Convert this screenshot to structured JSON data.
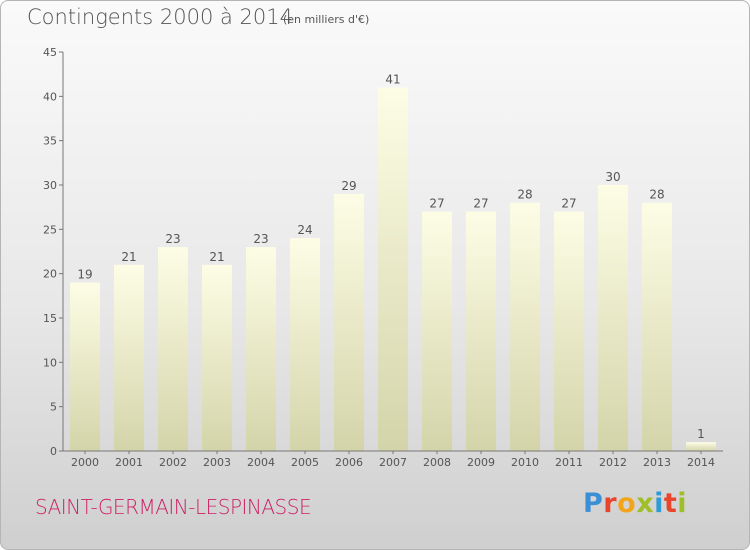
{
  "header": {
    "title": "Contingents 2000 à 2014",
    "subtitle": "(en milliers d'€)"
  },
  "footer": {
    "commune": "SAINT-GERMAIN-LESPINASSE",
    "logo": {
      "text": "Proxiti",
      "colors": [
        "#3a8fd6",
        "#e8452c",
        "#f2a51b",
        "#9fbf26",
        "#2e9bd6",
        "#e8452c",
        "#9fbf26"
      ]
    }
  },
  "chart_data": {
    "type": "bar",
    "title": "Contingents 2000 à 2014",
    "subtitle": "(en milliers d'€)",
    "categories": [
      "2000",
      "2001",
      "2002",
      "2003",
      "2004",
      "2005",
      "2006",
      "2007",
      "2008",
      "2009",
      "2010",
      "2011",
      "2012",
      "2013",
      "2014"
    ],
    "values": [
      19,
      21,
      23,
      21,
      23,
      24,
      29,
      41,
      27,
      27,
      28,
      27,
      30,
      28,
      1
    ],
    "ylim": [
      0,
      45
    ],
    "yticks": [
      0,
      5,
      10,
      15,
      20,
      25,
      30,
      35,
      40,
      45
    ],
    "grid": false,
    "legend": "none",
    "colors": {
      "bar_top": "#fdfde6",
      "bar_bottom": "#d4d4aa",
      "axis": "#777777",
      "text": "#555555"
    }
  }
}
